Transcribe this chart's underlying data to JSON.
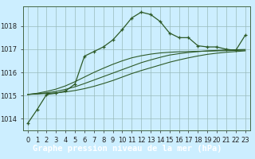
{
  "title": "Graphe pression niveau de la mer (hPa)",
  "bg_color": "#cceeff",
  "grid_color": "#99bbbb",
  "line_color": "#2d5a27",
  "border_color": "#446644",
  "x_labels": [
    "0",
    "1",
    "2",
    "3",
    "4",
    "5",
    "6",
    "7",
    "8",
    "9",
    "10",
    "11",
    "12",
    "13",
    "14",
    "15",
    "16",
    "17",
    "18",
    "19",
    "20",
    "21",
    "22",
    "23"
  ],
  "xlim": [
    -0.5,
    23.5
  ],
  "ylim": [
    1013.5,
    1018.85
  ],
  "yticks": [
    1014,
    1015,
    1016,
    1017,
    1018
  ],
  "series1_x": [
    0,
    1,
    2,
    3,
    4,
    5,
    6,
    7,
    8,
    9,
    10,
    11,
    12,
    13,
    14,
    15,
    16,
    17,
    18,
    19,
    20,
    21,
    22,
    23
  ],
  "series1_y": [
    1013.8,
    1014.4,
    1015.05,
    1015.1,
    1015.2,
    1015.5,
    1016.7,
    1016.9,
    1017.1,
    1017.4,
    1017.85,
    1018.35,
    1018.6,
    1018.5,
    1018.2,
    1017.7,
    1017.5,
    1017.5,
    1017.15,
    1017.1,
    1017.1,
    1017.0,
    1016.95,
    1017.6
  ],
  "series2_y": [
    1015.05,
    1015.07,
    1015.09,
    1015.12,
    1015.16,
    1015.22,
    1015.3,
    1015.4,
    1015.52,
    1015.65,
    1015.8,
    1015.95,
    1016.08,
    1016.2,
    1016.32,
    1016.44,
    1016.54,
    1016.63,
    1016.71,
    1016.78,
    1016.83,
    1016.87,
    1016.9,
    1016.93
  ],
  "series3_y": [
    1015.05,
    1015.08,
    1015.12,
    1015.18,
    1015.27,
    1015.38,
    1015.52,
    1015.67,
    1015.82,
    1015.97,
    1016.12,
    1016.27,
    1016.42,
    1016.54,
    1016.65,
    1016.75,
    1016.81,
    1016.86,
    1016.9,
    1016.93,
    1016.95,
    1016.97,
    1016.98,
    1016.99
  ],
  "series4_y": [
    1015.05,
    1015.1,
    1015.18,
    1015.28,
    1015.42,
    1015.6,
    1015.8,
    1016.0,
    1016.18,
    1016.35,
    1016.5,
    1016.63,
    1016.72,
    1016.79,
    1016.84,
    1016.87,
    1016.89,
    1016.9,
    1016.91,
    1016.92,
    1016.93,
    1016.94,
    1016.95,
    1016.96
  ],
  "title_bg": "#2d5a27",
  "title_fg": "#ffffff",
  "title_fontsize": 7.5,
  "tick_fontsize": 6,
  "ytick_fontsize": 6
}
